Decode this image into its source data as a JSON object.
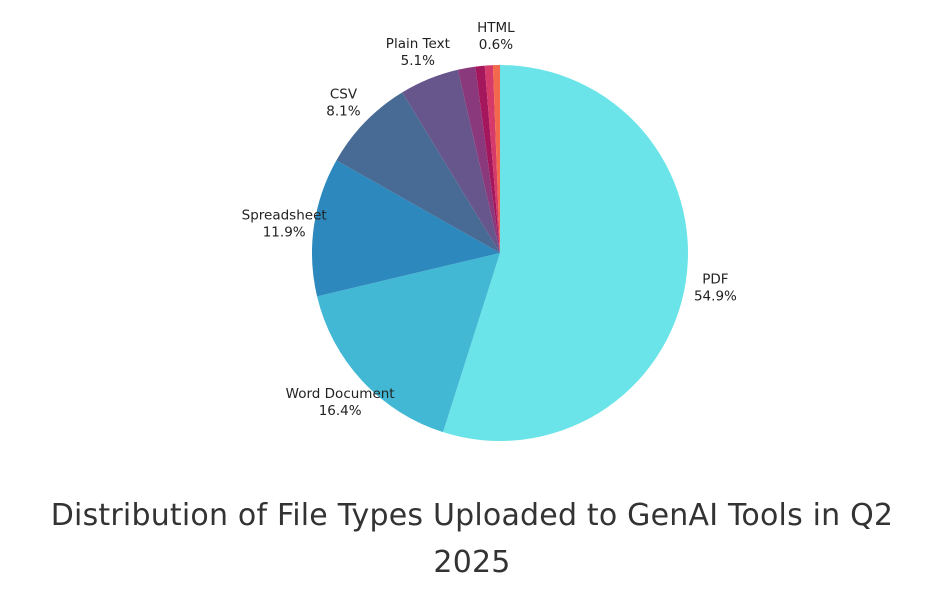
{
  "caption": "Distribution of File Types Uploaded to GenAI Tools in Q2 2025",
  "chart_data": {
    "type": "pie",
    "title": "Distribution of File Types Uploaded to GenAI Tools in Q2 2025",
    "start_angle": "12 o'clock",
    "direction": "clockwise",
    "legend": "none",
    "slices": [
      {
        "label": "PDF",
        "value": 54.9,
        "display": "54.9%",
        "color": "#6ae4e8",
        "labeled": true
      },
      {
        "label": "Word Document",
        "value": 16.4,
        "display": "16.4%",
        "color": "#42b8d4",
        "labeled": true
      },
      {
        "label": "Spreadsheet",
        "value": 11.9,
        "display": "11.9%",
        "color": "#2c88bd",
        "labeled": true
      },
      {
        "label": "CSV",
        "value": 8.1,
        "display": "8.1%",
        "color": "#486b95",
        "labeled": true
      },
      {
        "label": "Plain Text",
        "value": 5.1,
        "display": "5.1%",
        "color": "#67568c",
        "labeled": true
      },
      {
        "label": "",
        "value": 1.5,
        "display": "",
        "color": "#8a3a7c",
        "labeled": false
      },
      {
        "label": "",
        "value": 0.8,
        "display": "",
        "color": "#a5175c",
        "labeled": false
      },
      {
        "label": "",
        "value": 0.7,
        "display": "",
        "color": "#d53a6a",
        "labeled": false
      },
      {
        "label": "HTML",
        "value": 0.6,
        "display": "0.6%",
        "color": "#f2694d",
        "labeled": true
      }
    ]
  }
}
